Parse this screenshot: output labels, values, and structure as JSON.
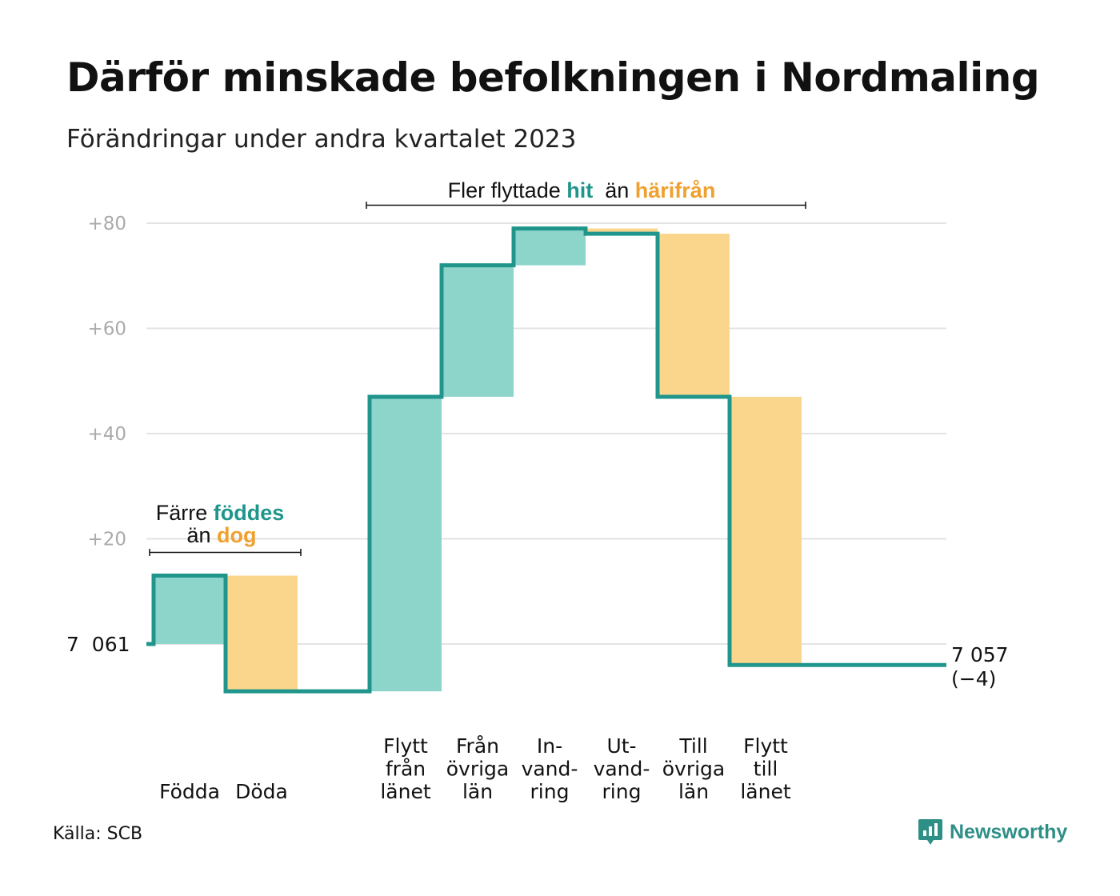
{
  "title": "Därför minskade befolkningen i Nordmaling",
  "subtitle": "Förändringar under andra kvartalet 2023",
  "source": "Källa: SCB",
  "brand": {
    "name": "Newsworthy",
    "icon": "newsworthy-logo-icon"
  },
  "colors": {
    "increase": "#8dd4cb",
    "decrease": "#fad68c",
    "line": "#1f958b",
    "accent_teal": "#1f958b",
    "accent_orange": "#f0a02e",
    "grid": "#e3e3e3",
    "tick": "#aaaaaa"
  },
  "chart_data": {
    "type": "waterfall",
    "baseline": 7061,
    "start_label": "7  061",
    "end_label_value": "7 057",
    "end_label_change": "(−4)",
    "ylim": [
      -9,
      82
    ],
    "yticks": [
      20,
      40,
      60,
      80
    ],
    "ytick_labels": [
      "+20",
      "+40",
      "+60",
      "+80"
    ],
    "grid": true,
    "steps": [
      {
        "label": "Födda",
        "label_lines": [
          "Födda"
        ],
        "value": 13,
        "kind": "increase"
      },
      {
        "label": "Döda",
        "label_lines": [
          "Döda"
        ],
        "value": -22,
        "kind": "decrease"
      },
      {
        "label": "",
        "label_lines": [],
        "value": 0,
        "kind": "none"
      },
      {
        "label": "Flytt från länet",
        "label_lines": [
          "Flytt",
          "från",
          "länet"
        ],
        "value": 56,
        "kind": "increase"
      },
      {
        "label": "Från övriga län",
        "label_lines": [
          "Från",
          "övriga",
          "län"
        ],
        "value": 25,
        "kind": "increase"
      },
      {
        "label": "In-vand-ring",
        "label_lines": [
          "In-",
          "vand-",
          "ring"
        ],
        "value": 7,
        "kind": "increase"
      },
      {
        "label": "Ut-vand-ring",
        "label_lines": [
          "Ut-",
          "vand-",
          "ring"
        ],
        "value": -1,
        "kind": "decrease"
      },
      {
        "label": "Till övriga län",
        "label_lines": [
          "Till",
          "övriga",
          "län"
        ],
        "value": -31,
        "kind": "decrease"
      },
      {
        "label": "Flytt till länet",
        "label_lines": [
          "Flytt",
          "till",
          "länet"
        ],
        "value": -51,
        "kind": "decrease"
      }
    ],
    "annotations": [
      {
        "id": "births-deaths",
        "line1": [
          {
            "text": "Färre ",
            "style": "plain"
          },
          {
            "text": "föddes",
            "style": "teal"
          }
        ],
        "line2": [
          {
            "text": "än ",
            "style": "plain"
          },
          {
            "text": "dog",
            "style": "orange"
          }
        ]
      },
      {
        "id": "migration",
        "line1": [
          {
            "text": "Fler flyttade ",
            "style": "plain"
          },
          {
            "text": "hit",
            "style": "teal"
          },
          {
            "text": "  än ",
            "style": "plain"
          },
          {
            "text": "härifrån",
            "style": "orange"
          }
        ]
      }
    ]
  }
}
